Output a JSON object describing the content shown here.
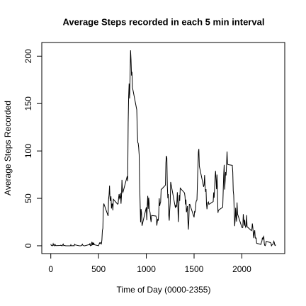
{
  "chart_data": {
    "type": "line",
    "title": "Average Steps recorded in each 5 min interval",
    "xlabel": "Time of Day (0000-2355)",
    "ylabel": "Average Steps Recorded",
    "xlim": [
      -94.2,
      2449.2
    ],
    "ylim": [
      -8.25,
      214.42
    ],
    "xticks": [
      0,
      500,
      1000,
      1500,
      2000
    ],
    "yticks": [
      0,
      50,
      100,
      150,
      200
    ],
    "series": [
      {
        "color": "#000000",
        "x": [
          0,
          5,
          10,
          15,
          20,
          25,
          30,
          35,
          40,
          45,
          50,
          55,
          100,
          105,
          110,
          115,
          120,
          125,
          130,
          135,
          140,
          145,
          150,
          155,
          200,
          205,
          210,
          215,
          220,
          225,
          230,
          235,
          240,
          245,
          250,
          255,
          300,
          305,
          310,
          315,
          320,
          325,
          330,
          335,
          340,
          345,
          350,
          355,
          400,
          405,
          410,
          415,
          420,
          425,
          430,
          435,
          440,
          445,
          450,
          455,
          500,
          505,
          510,
          515,
          520,
          525,
          530,
          535,
          540,
          545,
          550,
          555,
          600,
          605,
          610,
          615,
          620,
          625,
          630,
          635,
          640,
          645,
          650,
          655,
          700,
          705,
          710,
          715,
          720,
          725,
          730,
          735,
          740,
          745,
          750,
          755,
          800,
          805,
          810,
          815,
          820,
          825,
          830,
          835,
          840,
          845,
          850,
          855,
          900,
          905,
          910,
          915,
          920,
          925,
          930,
          935,
          940,
          945,
          950,
          955,
          1000,
          1005,
          1010,
          1015,
          1020,
          1025,
          1030,
          1035,
          1040,
          1045,
          1050,
          1055,
          1100,
          1105,
          1110,
          1115,
          1120,
          1125,
          1130,
          1135,
          1140,
          1145,
          1150,
          1155,
          1200,
          1205,
          1210,
          1215,
          1220,
          1225,
          1230,
          1235,
          1240,
          1245,
          1250,
          1255,
          1300,
          1305,
          1310,
          1315,
          1320,
          1325,
          1330,
          1335,
          1340,
          1345,
          1350,
          1355,
          1400,
          1405,
          1410,
          1415,
          1420,
          1425,
          1430,
          1435,
          1440,
          1445,
          1450,
          1455,
          1500,
          1505,
          1510,
          1515,
          1520,
          1525,
          1530,
          1535,
          1540,
          1545,
          1550,
          1555,
          1600,
          1605,
          1610,
          1615,
          1620,
          1625,
          1630,
          1635,
          1640,
          1645,
          1650,
          1655,
          1700,
          1705,
          1710,
          1715,
          1720,
          1725,
          1730,
          1735,
          1740,
          1745,
          1750,
          1755,
          1800,
          1805,
          1810,
          1815,
          1820,
          1825,
          1830,
          1835,
          1840,
          1845,
          1850,
          1855,
          1900,
          1905,
          1910,
          1915,
          1920,
          1925,
          1930,
          1935,
          1940,
          1945,
          1950,
          1955,
          2000,
          2005,
          2010,
          2015,
          2020,
          2025,
          2030,
          2035,
          2040,
          2045,
          2050,
          2055,
          2100,
          2105,
          2110,
          2115,
          2120,
          2125,
          2130,
          2135,
          2140,
          2145,
          2150,
          2155,
          2200,
          2205,
          2210,
          2215,
          2220,
          2225,
          2230,
          2235,
          2240,
          2245,
          2250,
          2255,
          2300,
          2305,
          2310,
          2315,
          2320,
          2325,
          2330,
          2335,
          2340,
          2345,
          2350,
          2355
        ],
        "values": [
          1.72,
          0.34,
          0.13,
          0.15,
          0.08,
          2.09,
          0.53,
          0.87,
          0,
          1.47,
          0.3,
          0.13,
          0.32,
          0.68,
          0.15,
          0.34,
          0,
          1.11,
          1.83,
          0.17,
          0.17,
          0.38,
          0.26,
          0,
          0,
          0,
          1.13,
          0,
          0,
          0.13,
          0,
          0.23,
          0,
          0,
          1.55,
          0.94,
          0,
          0,
          0,
          0,
          0.21,
          0.62,
          1.62,
          0.58,
          0.49,
          0.08,
          0,
          0,
          1.19,
          0.94,
          2.57,
          0,
          0.34,
          0.36,
          4.11,
          0.66,
          3.49,
          0.83,
          3.11,
          1.11,
          0,
          1.57,
          3,
          2.25,
          3.32,
          2.96,
          2.09,
          6.06,
          16.02,
          18.34,
          39.45,
          44.49,
          31.49,
          49.26,
          53.77,
          63.45,
          49.96,
          47.08,
          52.15,
          39.34,
          44.02,
          44.17,
          37.36,
          49.04,
          43.81,
          44.38,
          50.51,
          54.51,
          49.92,
          50.98,
          55.68,
          44.32,
          52.26,
          69.55,
          57.85,
          56.15,
          73.38,
          68.21,
          129.43,
          157.53,
          171.15,
          155.4,
          177.3,
          206.17,
          195.92,
          179.57,
          183.4,
          167.02,
          143.45,
          124.04,
          109.11,
          108.11,
          103.72,
          95.96,
          66.21,
          45.23,
          24.79,
          38.75,
          34.98,
          21.06,
          40.57,
          26.98,
          42.42,
          52.66,
          38.92,
          50.79,
          44.28,
          37.42,
          34.7,
          28.34,
          25.09,
          31.94,
          31.36,
          29.68,
          21.32,
          25.55,
          28.38,
          26.47,
          33.43,
          49.98,
          42.04,
          44.6,
          46.04,
          59.19,
          63.87,
          87.7,
          94.85,
          92.77,
          63.4,
          50.17,
          54.47,
          32.42,
          26.53,
          37.74,
          45.06,
          67.28,
          42.34,
          39.89,
          43.26,
          40.98,
          46.25,
          56.43,
          42.75,
          25.13,
          39.96,
          53.55,
          47.32,
          60.81,
          55.75,
          51.96,
          43.58,
          48.7,
          35.47,
          37.55,
          41.85,
          27.51,
          17.11,
          26.08,
          43.62,
          43.77,
          30.02,
          36.08,
          35.49,
          38.85,
          45.96,
          47.75,
          48.13,
          65.32,
          82.91,
          98.66,
          102.11,
          83.96,
          62.13,
          64.13,
          74.55,
          63.17,
          56.91,
          59.77,
          43.87,
          38.57,
          44.66,
          45.45,
          46.21,
          43.68,
          46.62,
          56.3,
          50.72,
          61.23,
          72.72,
          78.94,
          68.94,
          59.66,
          75.09,
          56.51,
          34.77,
          37.45,
          40.68,
          58.02,
          74.7,
          85.32,
          59.26,
          67.77,
          77.7,
          74.25,
          85.34,
          99.45,
          86.58,
          85.6,
          84.87,
          77.83,
          58.04,
          53.36,
          36.32,
          20.72,
          27.4,
          40.02,
          30.21,
          25.55,
          45.66,
          33.53,
          19.62,
          19.02,
          19.34,
          33.34,
          26.81,
          21.17,
          27.3,
          21.34,
          19.55,
          21.32,
          32.3,
          20.15,
          15.94,
          17.23,
          23.45,
          19.25,
          12.45,
          8.02,
          14.66,
          16.3,
          8.68,
          7.79,
          8.13,
          2.62,
          1.45,
          3.68,
          4.81,
          8.51,
          7.08,
          8.7,
          9.75,
          2.21,
          0.32,
          0.11,
          1.6,
          4.6,
          3.3,
          2.85,
          0,
          0.83,
          0.96,
          1.58,
          2.6,
          4.7,
          3.3,
          0.64,
          0.23,
          1.08
        ]
      }
    ]
  }
}
